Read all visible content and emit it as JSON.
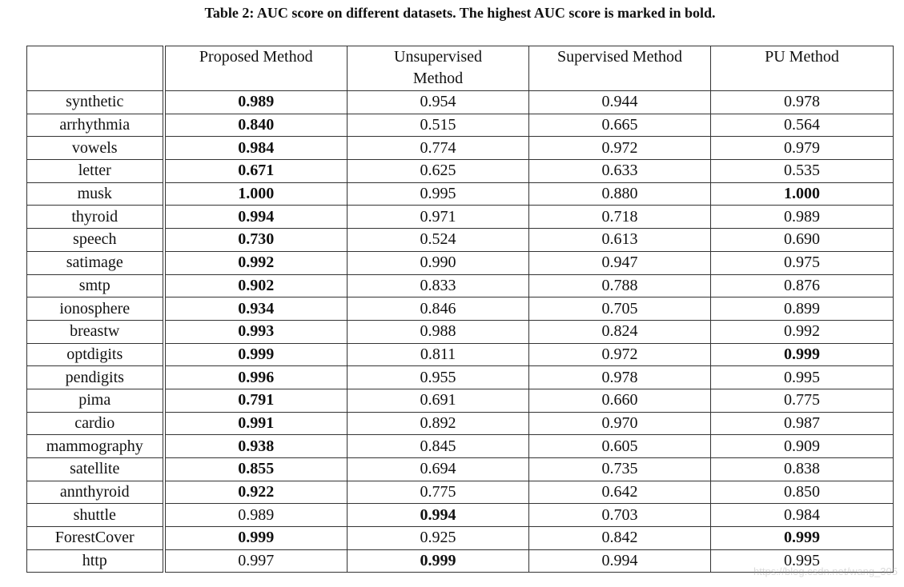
{
  "caption": "Table 2: AUC score on different datasets. The highest AUC score is marked in bold.",
  "table": {
    "columns": [
      "Proposed Method",
      "Unsupervised Method",
      "Supervised Method",
      "PU Method"
    ],
    "rows": [
      {
        "dataset": "synthetic",
        "scores": [
          "0.989",
          "0.954",
          "0.944",
          "0.978"
        ],
        "bold": [
          0
        ]
      },
      {
        "dataset": "arrhythmia",
        "scores": [
          "0.840",
          "0.515",
          "0.665",
          "0.564"
        ],
        "bold": [
          0
        ]
      },
      {
        "dataset": "vowels",
        "scores": [
          "0.984",
          "0.774",
          "0.972",
          "0.979"
        ],
        "bold": [
          0
        ]
      },
      {
        "dataset": "letter",
        "scores": [
          "0.671",
          "0.625",
          "0.633",
          "0.535"
        ],
        "bold": [
          0
        ]
      },
      {
        "dataset": "musk",
        "scores": [
          "1.000",
          "0.995",
          "0.880",
          "1.000"
        ],
        "bold": [
          0,
          3
        ]
      },
      {
        "dataset": "thyroid",
        "scores": [
          "0.994",
          "0.971",
          "0.718",
          "0.989"
        ],
        "bold": [
          0
        ]
      },
      {
        "dataset": "speech",
        "scores": [
          "0.730",
          "0.524",
          "0.613",
          "0.690"
        ],
        "bold": [
          0
        ]
      },
      {
        "dataset": "satimage",
        "scores": [
          "0.992",
          "0.990",
          "0.947",
          "0.975"
        ],
        "bold": [
          0
        ]
      },
      {
        "dataset": "smtp",
        "scores": [
          "0.902",
          "0.833",
          "0.788",
          "0.876"
        ],
        "bold": [
          0
        ]
      },
      {
        "dataset": "ionosphere",
        "scores": [
          "0.934",
          "0.846",
          "0.705",
          "0.899"
        ],
        "bold": [
          0
        ]
      },
      {
        "dataset": "breastw",
        "scores": [
          "0.993",
          "0.988",
          "0.824",
          "0.992"
        ],
        "bold": [
          0
        ]
      },
      {
        "dataset": "optdigits",
        "scores": [
          "0.999",
          "0.811",
          "0.972",
          "0.999"
        ],
        "bold": [
          0,
          3
        ]
      },
      {
        "dataset": "pendigits",
        "scores": [
          "0.996",
          "0.955",
          "0.978",
          "0.995"
        ],
        "bold": [
          0
        ]
      },
      {
        "dataset": "pima",
        "scores": [
          "0.791",
          "0.691",
          "0.660",
          "0.775"
        ],
        "bold": [
          0
        ]
      },
      {
        "dataset": "cardio",
        "scores": [
          "0.991",
          "0.892",
          "0.970",
          "0.987"
        ],
        "bold": [
          0
        ]
      },
      {
        "dataset": "mammography",
        "scores": [
          "0.938",
          "0.845",
          "0.605",
          "0.909"
        ],
        "bold": [
          0
        ]
      },
      {
        "dataset": "satellite",
        "scores": [
          "0.855",
          "0.694",
          "0.735",
          "0.838"
        ],
        "bold": [
          0
        ]
      },
      {
        "dataset": "annthyroid",
        "scores": [
          "0.922",
          "0.775",
          "0.642",
          "0.850"
        ],
        "bold": [
          0
        ]
      },
      {
        "dataset": "shuttle",
        "scores": [
          "0.989",
          "0.994",
          "0.703",
          "0.984"
        ],
        "bold": [
          1
        ]
      },
      {
        "dataset": "ForestCover",
        "scores": [
          "0.999",
          "0.925",
          "0.842",
          "0.999"
        ],
        "bold": [
          0,
          3
        ]
      },
      {
        "dataset": "http",
        "scores": [
          "0.997",
          "0.999",
          "0.994",
          "0.995"
        ],
        "bold": [
          1
        ]
      }
    ]
  },
  "watermark": "https://blog.csdn.net/wang_305"
}
